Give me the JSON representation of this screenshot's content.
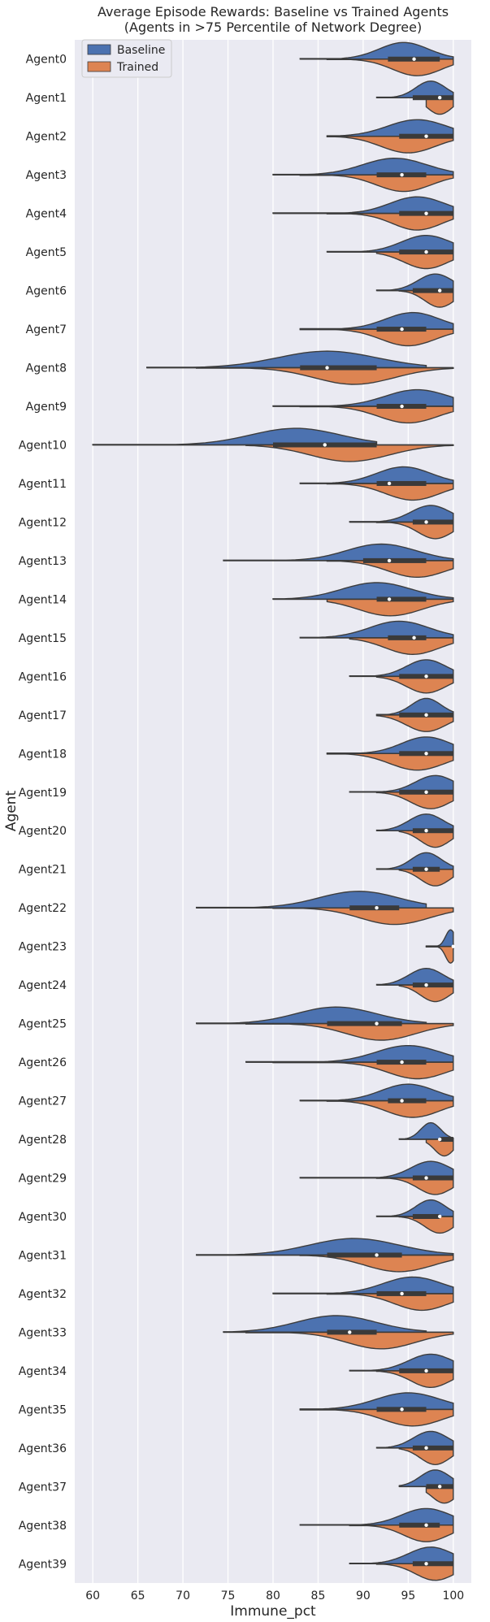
{
  "chart_data": {
    "type": "violin",
    "title": [
      "Average Episode Rewards: Baseline vs Trained Agents",
      "(Agents in >75 Percentile of Network Degree)"
    ],
    "xlabel": "Immune_pct",
    "ylabel": "Agent",
    "xlim": [
      58,
      102
    ],
    "xticks": [
      60,
      65,
      70,
      75,
      80,
      85,
      90,
      95,
      100
    ],
    "orientation": "horizontal",
    "split": true,
    "grid": true,
    "legend": {
      "position": "top-left",
      "entries": [
        "Baseline",
        "Trained"
      ]
    },
    "colors": {
      "Baseline": "#4c72b0",
      "Trained": "#dd8452",
      "background": "#eaeaf2",
      "grid": "#ffffff",
      "box": "#3a3a3a",
      "outline": "#3d3d3d"
    },
    "categories": [
      "Agent0",
      "Agent1",
      "Agent2",
      "Agent3",
      "Agent4",
      "Agent5",
      "Agent6",
      "Agent7",
      "Agent8",
      "Agent9",
      "Agent10",
      "Agent11",
      "Agent12",
      "Agent13",
      "Agent14",
      "Agent15",
      "Agent16",
      "Agent17",
      "Agent18",
      "Agent19",
      "Agent20",
      "Agent21",
      "Agent22",
      "Agent23",
      "Agent24",
      "Agent25",
      "Agent26",
      "Agent27",
      "Agent28",
      "Agent29",
      "Agent30",
      "Agent31",
      "Agent32",
      "Agent33",
      "Agent34",
      "Agent35",
      "Agent36",
      "Agent37",
      "Agent38",
      "Agent39"
    ],
    "series": [
      {
        "name": "Baseline",
        "min": [
          83,
          91.5,
          86,
          80,
          80,
          86,
          91.5,
          83,
          66,
          80,
          60,
          83,
          88.5,
          74.5,
          80,
          83,
          88.5,
          91.5,
          86,
          88.5,
          91.5,
          91.5,
          71.5,
          97,
          91.5,
          71.5,
          77,
          83,
          94,
          83,
          91.5,
          71.5,
          80,
          74.5,
          88.5,
          83,
          91.5,
          94,
          83,
          88.5
        ],
        "max": [
          100,
          100,
          100,
          100,
          100,
          100,
          100,
          100,
          97,
          100,
          91.5,
          100,
          100,
          100,
          100,
          100,
          100,
          100,
          100,
          100,
          100,
          100,
          97,
          100,
          100,
          97,
          100,
          100,
          100,
          100,
          100,
          100,
          100,
          97,
          100,
          100,
          100,
          100,
          100,
          100
        ],
        "q1": [
          91.5,
          94,
          94,
          91.5,
          94,
          94,
          94,
          91.5,
          83,
          91.5,
          80,
          91.5,
          94,
          88.5,
          91.5,
          91.5,
          94,
          94,
          94,
          94,
          94,
          94,
          88.5,
          100,
          94,
          86,
          91.5,
          91.5,
          97,
          94,
          94,
          86,
          91.5,
          86,
          94,
          91.5,
          94,
          97,
          94,
          94
        ],
        "median": [
          94.3,
          97,
          97,
          94.3,
          97,
          97,
          97,
          94.3,
          86,
          94.3,
          85.5,
          91.5,
          97,
          91.5,
          91.5,
          94.3,
          97,
          97,
          97,
          97,
          97,
          97,
          91.5,
          100,
          97,
          91.5,
          94.3,
          94.3,
          97,
          97,
          97,
          91.5,
          94.3,
          88.5,
          97,
          94.3,
          97,
          97,
          97,
          97
        ],
        "q3": [
          97,
          100,
          100,
          97,
          100,
          100,
          100,
          97,
          91.5,
          97,
          91.5,
          97,
          100,
          97,
          97,
          97,
          100,
          100,
          100,
          100,
          100,
          97,
          94,
          100,
          100,
          94.3,
          97,
          97,
          100,
          100,
          97,
          94.3,
          97,
          91.5,
          100,
          97,
          100,
          100,
          97,
          100
        ],
        "mode": [
          94.5,
          97.5,
          96,
          93.5,
          96,
          97,
          98,
          95.5,
          86,
          96,
          82.5,
          94.5,
          97.5,
          92,
          91.5,
          94,
          97,
          97,
          97,
          98,
          97,
          97,
          89.5,
          99.7,
          97,
          87,
          95,
          95,
          97.5,
          97.5,
          97.5,
          89,
          95.5,
          87,
          97.5,
          95,
          97.5,
          98,
          97,
          97.5
        ],
        "spread": [
          5,
          3,
          6,
          6.5,
          5.5,
          5,
          3.5,
          5.5,
          10,
          6.5,
          9,
          5.5,
          4,
          7,
          7,
          6,
          4,
          3,
          5,
          4,
          3.5,
          3,
          8,
          1,
          3.5,
          8,
          6.5,
          5.5,
          2,
          4,
          3,
          9,
          6,
          8,
          4.5,
          6.5,
          3.5,
          3,
          5,
          4.5
        ]
      },
      {
        "name": "Trained",
        "min": [
          86,
          97,
          86,
          83,
          86,
          91.5,
          94,
          83,
          71.5,
          83,
          77,
          86,
          91.5,
          86,
          86,
          88.5,
          91.5,
          91.5,
          86,
          91.5,
          94,
          94,
          80,
          97,
          94,
          77,
          80,
          86,
          97,
          91.5,
          94,
          83,
          86,
          77,
          91.5,
          83,
          94,
          97,
          88.5,
          91.5
        ],
        "max": [
          100,
          100,
          100,
          100,
          100,
          100,
          100,
          100,
          100,
          100,
          100,
          100,
          100,
          100,
          100,
          100,
          100,
          100,
          100,
          100,
          100,
          100,
          100,
          100,
          100,
          100,
          100,
          100,
          100,
          100,
          100,
          100,
          100,
          100,
          100,
          100,
          100,
          100,
          100,
          100
        ],
        "q1": [
          94,
          97,
          94,
          91.5,
          94,
          94,
          97,
          91.5,
          83,
          91.5,
          80,
          91.5,
          97,
          91.5,
          91.5,
          94,
          94,
          94,
          94,
          94,
          97,
          97,
          88.5,
          100,
          97,
          86,
          91.5,
          94,
          100,
          97,
          97,
          86,
          91.5,
          86,
          94,
          91.5,
          97,
          97,
          94,
          97
        ],
        "median": [
          97,
          100,
          97,
          94.3,
          97,
          97,
          100,
          94.3,
          86,
          94.3,
          86,
          94.3,
          97,
          94.3,
          94.3,
          97,
          97,
          97,
          97,
          97,
          97,
          97,
          91.5,
          100,
          97,
          91.5,
          94.3,
          94.3,
          100,
          97,
          100,
          91.5,
          94.3,
          88.5,
          97,
          94.3,
          97,
          100,
          97,
          97
        ],
        "q3": [
          100,
          100,
          100,
          97,
          100,
          100,
          100,
          97,
          91.5,
          97,
          91.5,
          97,
          100,
          97,
          97,
          97,
          100,
          100,
          100,
          100,
          100,
          100,
          94,
          100,
          100,
          94.3,
          97,
          97,
          100,
          100,
          100,
          94.3,
          97,
          91.5,
          100,
          97,
          100,
          100,
          100,
          100
        ],
        "mode": [
          96,
          98.5,
          95,
          94.5,
          96,
          97,
          98.5,
          95,
          89,
          95,
          88.5,
          95.5,
          98,
          96,
          93,
          95.5,
          97,
          97,
          96,
          97.5,
          98,
          98,
          93.5,
          99.7,
          98,
          92,
          96,
          95.5,
          99,
          98,
          98.5,
          94,
          96.5,
          92,
          97.5,
          95.5,
          98,
          99,
          97,
          98
        ],
        "spread": [
          5,
          2.5,
          5.5,
          5.5,
          5,
          4.5,
          3,
          5.5,
          8,
          6,
          8,
          5.5,
          3.5,
          6,
          6.5,
          5.5,
          4,
          4,
          5.5,
          4,
          3,
          3,
          7,
          1,
          3,
          7,
          6,
          5.5,
          2,
          3.5,
          3,
          7,
          5.5,
          7,
          4,
          6,
          3,
          2.5,
          4.5,
          4
        ]
      }
    ]
  }
}
